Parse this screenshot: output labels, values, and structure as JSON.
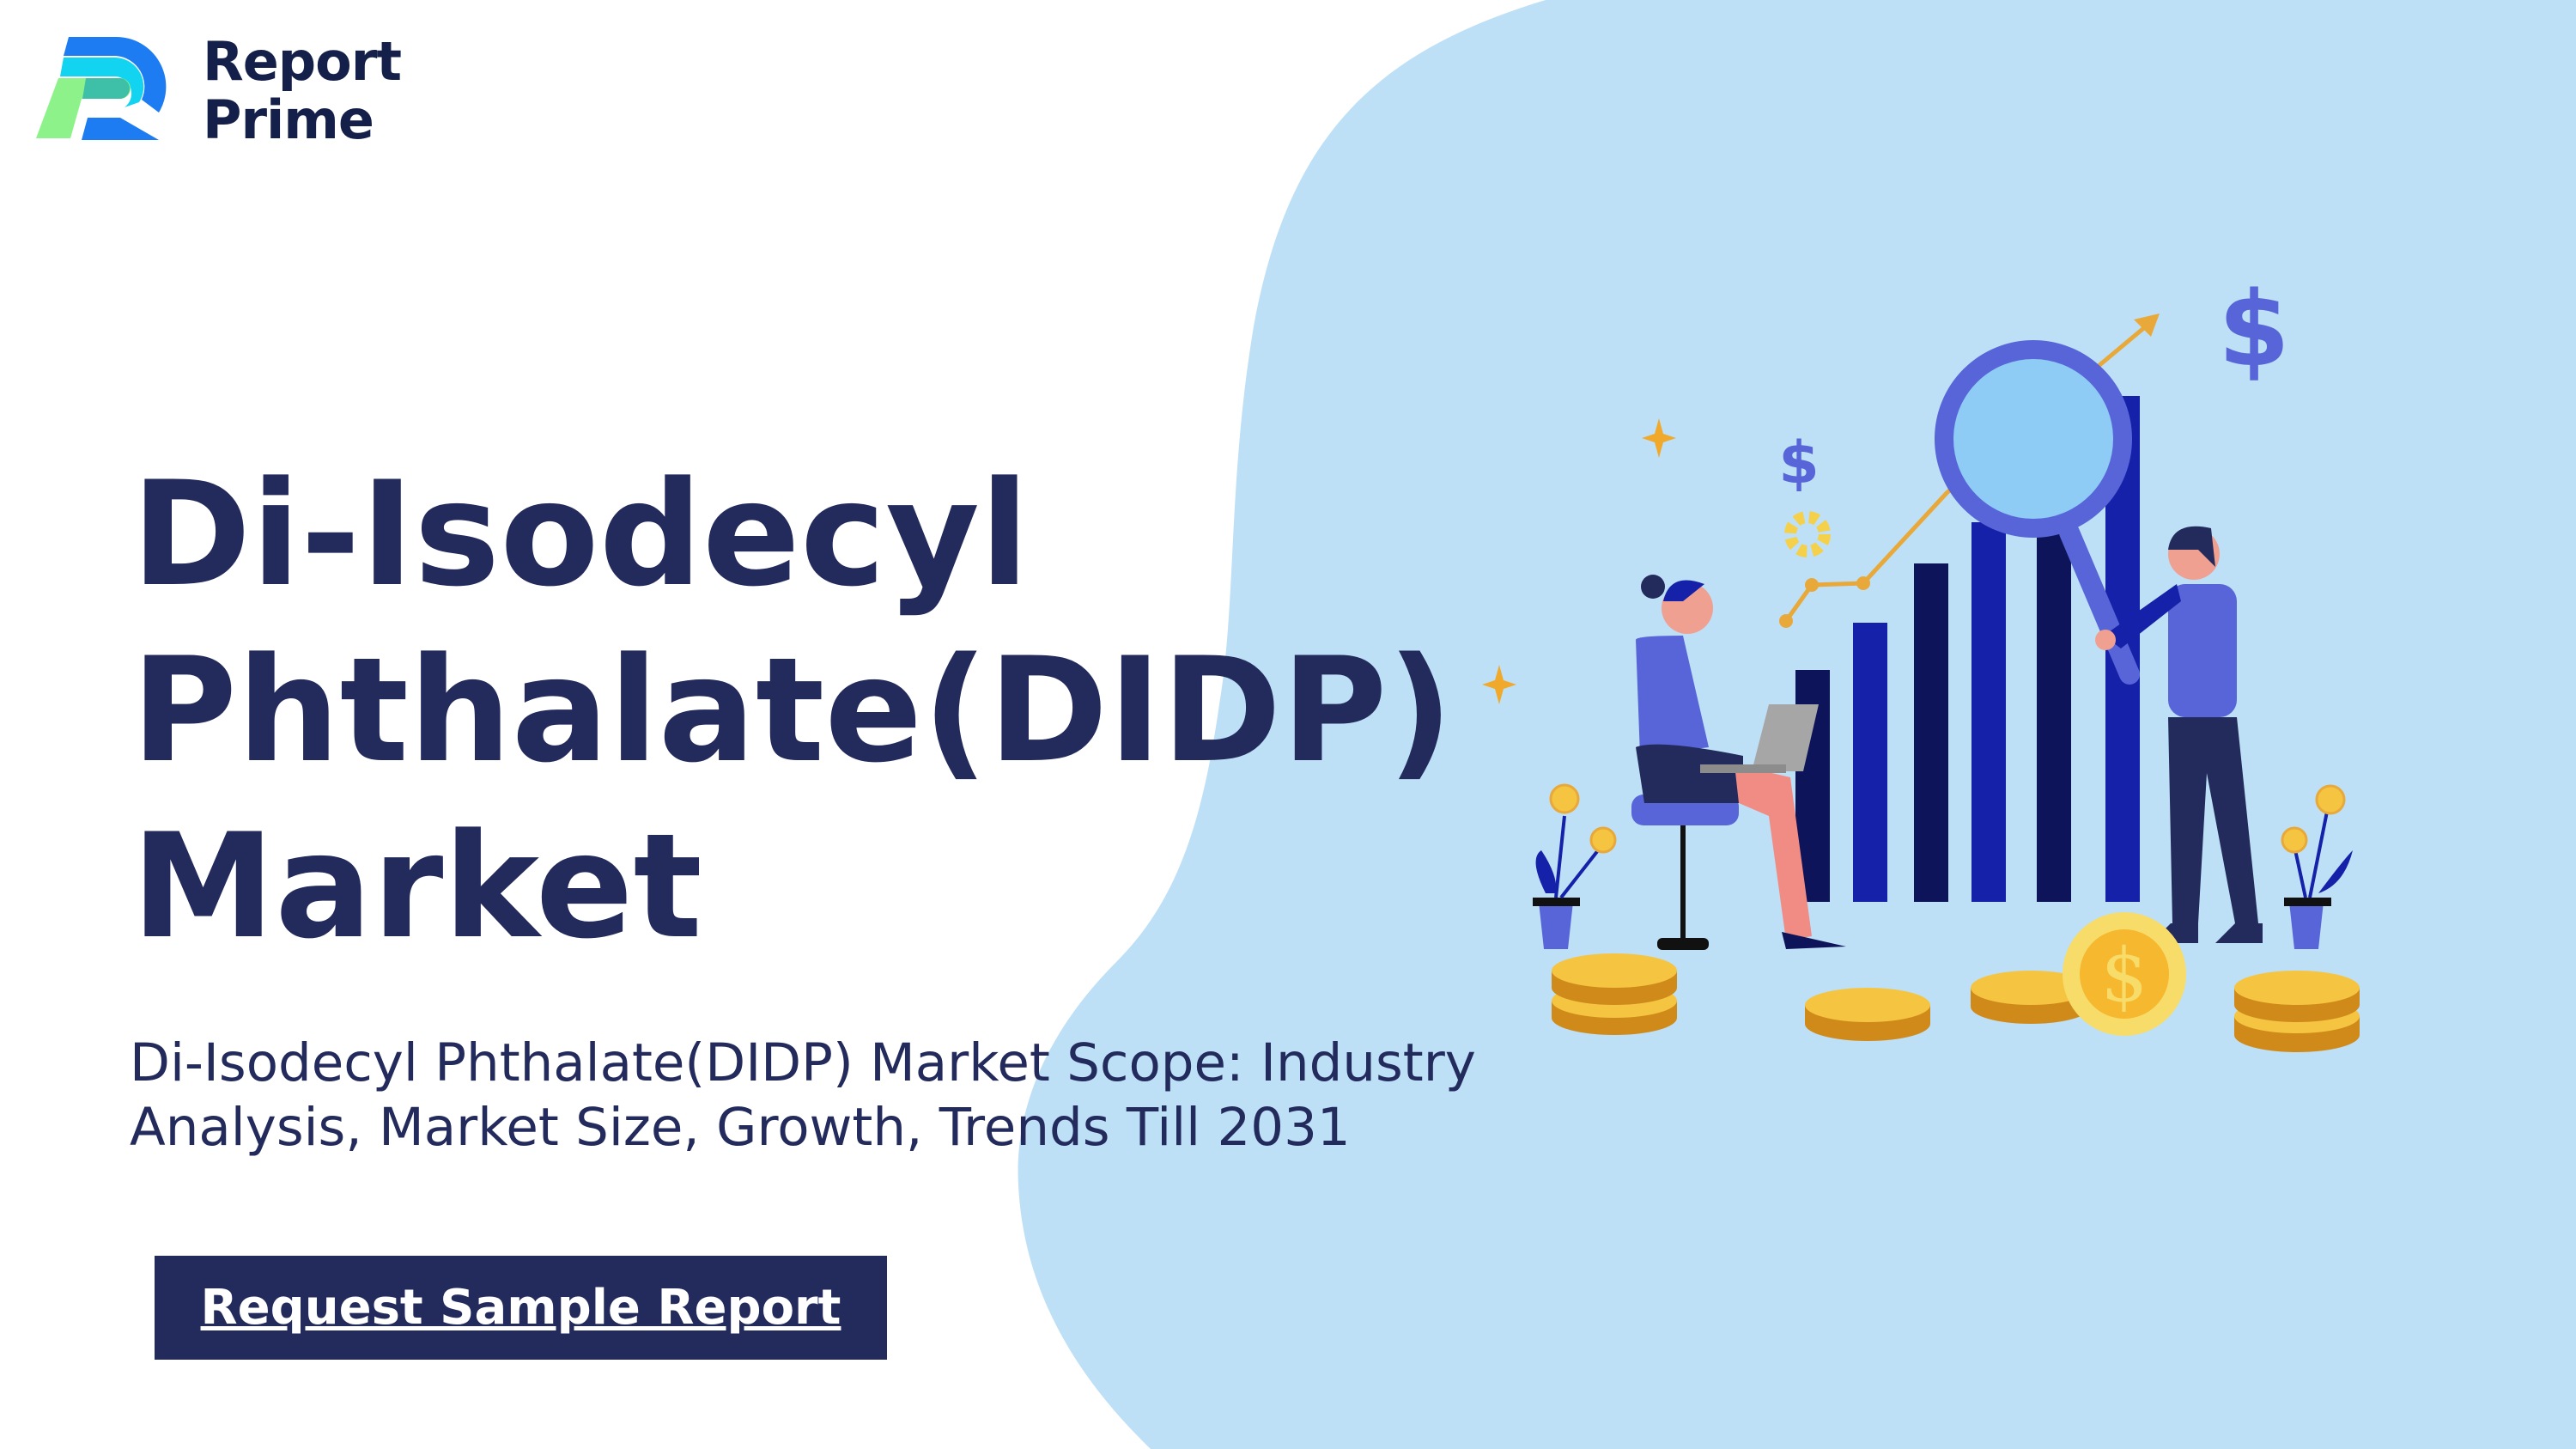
{
  "logo": {
    "line1": "Report",
    "line2": "Prime"
  },
  "hero": {
    "title_lines": [
      "Di-Isodecyl",
      "Phthalate(DIDP)",
      "Market"
    ],
    "subtitle": "Di-Isodecyl Phthalate(DIDP) Market Scope: Industry Analysis, Market Size, Growth, Trends Till 2031"
  },
  "cta": {
    "label": "Request Sample Report"
  },
  "illustration": {
    "dollar_symbol": "$"
  },
  "colors": {
    "navy": "#232a5c",
    "blob": "#bde0f7",
    "bar_dark": "#0d1459",
    "bar_blue": "#1421a8",
    "accent": "#5865d8",
    "gold": "#f5c542"
  }
}
